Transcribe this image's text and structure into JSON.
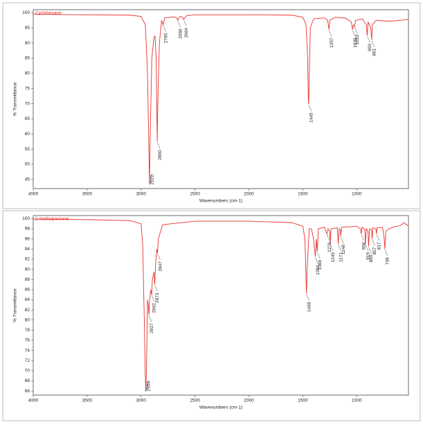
{
  "chart_data": [
    {
      "type": "line",
      "xlabel": "Wavenumbers (cm-1)",
      "ylabel": "% Transmittance",
      "xlim": [
        4000,
        520
      ],
      "ylim": [
        42,
        101
      ],
      "xticks": [
        4000,
        3500,
        3000,
        2500,
        2000,
        1500,
        1000
      ],
      "yticks": [
        45,
        50,
        55,
        60,
        65,
        70,
        75,
        80,
        85,
        90,
        95,
        100
      ],
      "series": [
        {
          "name": "Cyclohexane",
          "color": "#e8302c",
          "x": [
            4000,
            3500,
            3100,
            3000,
            2960,
            2940,
            2930,
            2922,
            2915,
            2900,
            2880,
            2870,
            2860,
            2850,
            2845,
            2830,
            2810,
            2795,
            2780,
            2700,
            2670,
            2660,
            2640,
            2615,
            2604,
            2580,
            2500,
            2000,
            1600,
            1500,
            1470,
            1455,
            1449,
            1445,
            1440,
            1430,
            1400,
            1300,
            1270,
            1257,
            1250,
            1200,
            1100,
            1050,
            1039,
            1030,
            1020,
            1010,
            950,
            910,
            903,
            895,
            870,
            861,
            855,
            820,
            700,
            600,
            520
          ],
          "values": [
            99.5,
            99.3,
            99.2,
            98.8,
            96,
            80,
            60,
            43.5,
            60,
            85,
            92,
            92.3,
            85,
            57.5,
            70,
            90,
            97.5,
            96,
            98.3,
            98.6,
            98.4,
            97.5,
            98.8,
            98.5,
            97.8,
            99,
            99.3,
            99.3,
            99.2,
            98.5,
            96,
            85,
            72,
            69.8,
            80,
            95,
            98,
            98.3,
            97.5,
            94.5,
            97.5,
            98.5,
            98.2,
            97,
            94.5,
            96,
            95.5,
            97.5,
            98,
            96,
            92.5,
            97,
            95,
            91,
            96,
            97.5,
            97.2,
            97.5,
            97.8
          ]
        }
      ],
      "peaks": [
        2922,
        2850,
        2795,
        2660,
        2604,
        1445,
        1257,
        1039,
        1020,
        903,
        861
      ]
    },
    {
      "type": "line",
      "xlabel": "Wavenumbers (cm-1)",
      "ylabel": "% Transmittance",
      "xlim": [
        4000,
        520
      ],
      "ylim": [
        65.2,
        100.6
      ],
      "xticks": [
        4000,
        3500,
        3000,
        2500,
        2000,
        1500,
        1000
      ],
      "yticks": [
        66,
        68,
        70,
        72,
        74,
        76,
        78,
        80,
        82,
        84,
        86,
        88,
        90,
        92,
        94,
        96,
        98,
        100
      ],
      "series": [
        {
          "name": "2-methylpentane",
          "color": "#e8302c",
          "x": [
            4000,
            3500,
            3100,
            3000,
            2985,
            2970,
            2962,
            2956,
            2950,
            2940,
            2933,
            2927,
            2920,
            2910,
            2902,
            2895,
            2880,
            2873,
            2865,
            2855,
            2847,
            2840,
            2800,
            2500,
            2000,
            1600,
            1500,
            1480,
            1470,
            1466,
            1460,
            1440,
            1420,
            1400,
            1384,
            1375,
            1366,
            1355,
            1300,
            1285,
            1276,
            1265,
            1250,
            1245,
            1238,
            1180,
            1171,
            1162,
            1150,
            1148,
            1140,
            1000,
            965,
            958,
            950,
            925,
            919,
            910,
            895,
            890,
            880,
            862,
            857,
            850,
            822,
            817,
            810,
            760,
            745,
            739,
            730,
            700,
            650,
            600,
            560,
            520
          ],
          "values": [
            99.9,
            99.8,
            99.6,
            99.0,
            95,
            80,
            70,
            66,
            70,
            84,
            83,
            81,
            84,
            86,
            85,
            88,
            89.5,
            87,
            91,
            94,
            93.2,
            96,
            98.8,
            99.5,
            99.5,
            99.2,
            98.5,
            96,
            88,
            85.2,
            90,
            98,
            98,
            96,
            92.5,
            96,
            93.5,
            98,
            98.3,
            97.5,
            97,
            98,
            97.5,
            95,
            98,
            98.2,
            95,
            98,
            97.8,
            96.5,
            98.3,
            98.5,
            98,
            97,
            98.3,
            97.8,
            95,
            98,
            97.5,
            94.5,
            98,
            97.8,
            96,
            98.2,
            98,
            97,
            98.2,
            98.3,
            96,
            94,
            97.5,
            98,
            98.4,
            98.6,
            99.2,
            98.5
          ]
        }
      ],
      "peaks": [
        2956,
        2927,
        2902,
        2873,
        2847,
        1466,
        1384,
        1366,
        1276,
        1245,
        1171,
        1148,
        958,
        919,
        890,
        857,
        817,
        739
      ]
    }
  ]
}
